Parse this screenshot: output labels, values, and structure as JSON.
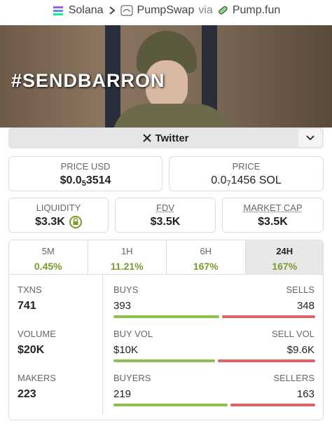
{
  "breadcrumb": {
    "chain": "Solana",
    "dex": "PumpSwap",
    "via": "via",
    "launchpad": "Pump.fun"
  },
  "banner": {
    "text": "#SENDBARRON"
  },
  "social": {
    "label": "Twitter"
  },
  "price_usd": {
    "label": "PRICE USD",
    "prefix": "$0.0",
    "zeros": "5",
    "digits": "3514"
  },
  "price_native": {
    "label": "PRICE",
    "prefix": "0.0",
    "zeros": "7",
    "digits": "1456 SOL"
  },
  "metrics": [
    {
      "label": "LIQUIDITY",
      "value": "$3.3K"
    },
    {
      "label": "FDV",
      "value": "$3.5K"
    },
    {
      "label": "MARKET CAP",
      "value": "$3.5K"
    }
  ],
  "timeframes": [
    {
      "label": "5M",
      "change": "0.45%",
      "selected": false
    },
    {
      "label": "1H",
      "change": "11.21%",
      "selected": false
    },
    {
      "label": "6H",
      "change": "167%",
      "selected": false
    },
    {
      "label": "24H",
      "change": "167%",
      "selected": true
    }
  ],
  "stats": [
    {
      "label": "TXNS",
      "value": 741,
      "buy_label": "BUYS",
      "buy": 393,
      "sell_label": "SELLS",
      "sell": 348
    },
    {
      "label": "VOLUME",
      "value": "$20K",
      "buy_label": "BUY VOL",
      "buy": "$10K",
      "sell_label": "SELL VOL",
      "sell": "$9.6K"
    },
    {
      "label": "MAKERS",
      "value": 223,
      "buy_label": "BUYERS",
      "buy": 219,
      "sell_label": "SELLERS",
      "sell": 163
    }
  ]
}
